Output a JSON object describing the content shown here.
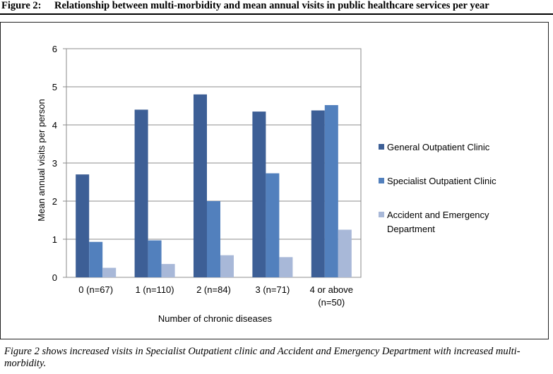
{
  "figure_label": "Figure 2:",
  "figure_title": "Relationship between multi-morbidity and mean annual visits in public healthcare services per year",
  "caption_label": "Figure",
  "caption_text": "2 shows increased visits in Specialist Outpatient clinic and Accident and Emergency Department with increased multi-morbidity.",
  "chart_data": {
    "type": "bar",
    "title": "",
    "xlabel": "Number of chronic diseases",
    "ylabel": "Mean annual visits per person",
    "ylim": [
      0,
      6
    ],
    "yticks": [
      0,
      1,
      2,
      3,
      4,
      5,
      6
    ],
    "grid": "horizontal",
    "legend_position": "right",
    "categories": [
      "0 (n=67)",
      "1 (n=110)",
      "2 (n=84)",
      "3 (n=71)",
      "4 or above (n=50)"
    ],
    "series": [
      {
        "name": "General Outpatient Clinic",
        "color": "#3d5f96",
        "values": [
          2.7,
          4.4,
          4.8,
          4.35,
          4.38
        ]
      },
      {
        "name": "Specialist Outpatient Clinic",
        "color": "#5280bd",
        "values": [
          0.93,
          0.97,
          2.0,
          2.73,
          4.52
        ]
      },
      {
        "name": "Accident and Emergency Department",
        "color": "#a8b8d8",
        "values": [
          0.25,
          0.35,
          0.58,
          0.53,
          1.25
        ]
      }
    ]
  }
}
